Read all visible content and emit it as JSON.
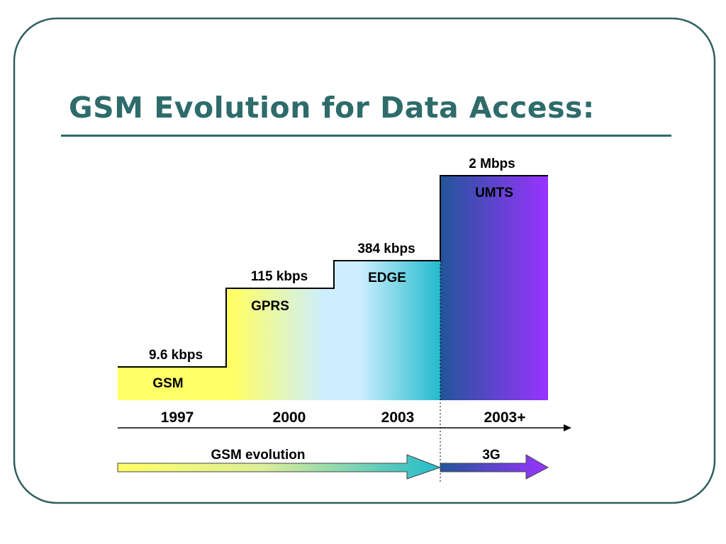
{
  "title": "GSM Evolution for Data Access:",
  "colors": {
    "frame": "#2E5F60",
    "title": "#2E6B6B",
    "outline": "#000000",
    "gsm_yellow": "#FFFF66",
    "light_blue": "#CCEEFF",
    "teal": "#22BBCC",
    "deep_blue": "#225599",
    "purple": "#9933FF"
  },
  "steps": [
    {
      "rate": "9.6 kbps",
      "tech": "GSM",
      "year": "1997"
    },
    {
      "rate": "115 kbps",
      "tech": "GPRS",
      "year": "2000"
    },
    {
      "rate": "384 kbps",
      "tech": "EDGE",
      "year": "2003"
    },
    {
      "rate": "2 Mbps",
      "tech": "UMTS",
      "year": "2003+"
    }
  ],
  "arrows": {
    "gsm_evolution": "GSM evolution",
    "three_g": "3G"
  }
}
